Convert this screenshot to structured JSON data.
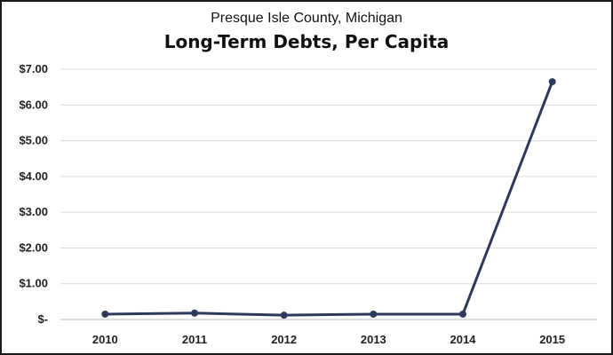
{
  "chart_data": {
    "type": "line",
    "subtitle": "Presque Isle County, Michigan",
    "title": "Long-Term Debts, Per Capita",
    "categories": [
      "2010",
      "2011",
      "2012",
      "2013",
      "2014",
      "2015"
    ],
    "series": [
      {
        "values": [
          0.15,
          0.18,
          0.12,
          0.15,
          0.15,
          6.65
        ]
      }
    ],
    "ylim": [
      0,
      7
    ],
    "y_ticks": [
      0,
      1,
      2,
      3,
      4,
      5,
      6,
      7
    ],
    "y_tick_labels": [
      "$-",
      "$1.00",
      "$2.00",
      "$3.00",
      "$4.00",
      "$5.00",
      "$6.00",
      "$7.00"
    ],
    "xlabel": "",
    "ylabel": "",
    "grid": true,
    "line_color": "#2e3a5c"
  }
}
